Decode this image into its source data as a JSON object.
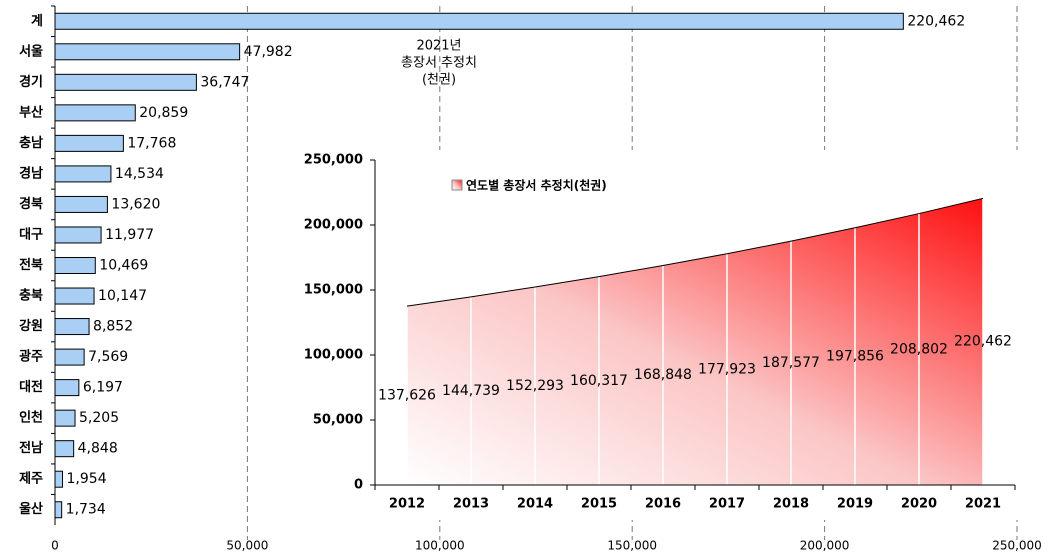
{
  "chart_data": [
    {
      "type": "hbar",
      "categories": [
        "계",
        "서울",
        "경기",
        "부산",
        "충남",
        "경남",
        "경북",
        "대구",
        "전북",
        "충북",
        "강원",
        "광주",
        "대전",
        "인천",
        "전남",
        "제주",
        "울산"
      ],
      "values": [
        220462,
        47982,
        36747,
        20859,
        17768,
        14534,
        13620,
        11977,
        10469,
        10147,
        8852,
        7569,
        6197,
        5205,
        4848,
        1954,
        1734
      ],
      "value_labels": [
        "220,462",
        "47,982",
        "36,747",
        "20,859",
        "17,768",
        "14,534",
        "13,620",
        "11,977",
        "10,469",
        "10,147",
        "8,852",
        "7,569",
        "6,197",
        "5,205",
        "4,848",
        "1,954",
        "1,734"
      ],
      "color": "#a9cff5",
      "xlim": [
        0,
        250000
      ],
      "xticks": [
        0,
        {
          "value": 50000,
          "label": "50,000"
        },
        {
          "value": 100000,
          "label": "100,000"
        },
        {
          "value": 150000,
          "label": "150,000"
        },
        {
          "value": 200000,
          "label": "200,000"
        },
        {
          "value": 250000,
          "label": "250,000"
        }
      ],
      "grid": true,
      "annotation": [
        "2021년",
        "총장서 추정치",
        "(천권)"
      ]
    },
    {
      "type": "area",
      "categories": [
        "2012",
        "2013",
        "2014",
        "2015",
        "2016",
        "2017",
        "2018",
        "2019",
        "2020",
        "2021"
      ],
      "series": [
        {
          "name": "연도별 총장서 추정치(천권)",
          "color": "#ff2020",
          "values": [
            137626,
            144739,
            152293,
            160317,
            168848,
            177923,
            187577,
            197856,
            208802,
            220462
          ],
          "value_labels": [
            "137,626",
            "144,739",
            "152,293",
            "160,317",
            "168,848",
            "177,923",
            "187,577",
            "197,856",
            "208,802",
            "220,462"
          ]
        }
      ],
      "ylim": [
        0,
        250000
      ],
      "yticks": [
        0,
        {
          "value": 50000,
          "label": "50,000"
        },
        {
          "value": 100000,
          "label": "100,000"
        },
        {
          "value": 150000,
          "label": "150,000"
        },
        {
          "value": 200000,
          "label": "200,000"
        },
        {
          "value": 250000,
          "label": "250,000"
        }
      ],
      "legend": "upper-left"
    }
  ]
}
